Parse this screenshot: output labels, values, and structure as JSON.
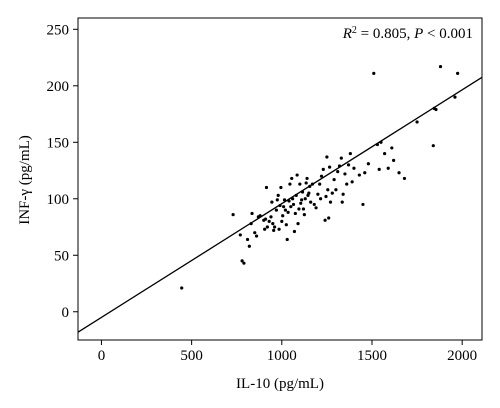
{
  "chart_data": {
    "type": "scatter",
    "xlabel": "IL-10 (pg/mL)",
    "ylabel": "INF-γ (pg/mL)",
    "xlim": [
      -130,
      2110
    ],
    "ylim": [
      -25,
      260
    ],
    "xticks": [
      0,
      500,
      1000,
      1500,
      2000
    ],
    "yticks": [
      0,
      50,
      100,
      150,
      200,
      250
    ],
    "annotation": {
      "r_label": "R",
      "r_exp": "2",
      "r_rest": " = 0.805, ",
      "p_label": "P",
      "p_rest": " < 0.001"
    },
    "fit_line": {
      "slope": 0.1007,
      "intercept": -5
    },
    "points": [
      [
        445,
        21
      ],
      [
        730,
        86
      ],
      [
        770,
        68
      ],
      [
        780,
        45
      ],
      [
        790,
        43
      ],
      [
        810,
        64
      ],
      [
        820,
        58
      ],
      [
        830,
        78
      ],
      [
        835,
        87
      ],
      [
        850,
        70
      ],
      [
        860,
        67
      ],
      [
        870,
        84
      ],
      [
        880,
        85
      ],
      [
        900,
        81
      ],
      [
        905,
        73
      ],
      [
        910,
        82
      ],
      [
        915,
        110
      ],
      [
        920,
        75
      ],
      [
        930,
        80
      ],
      [
        940,
        84
      ],
      [
        945,
        97
      ],
      [
        950,
        78
      ],
      [
        955,
        72
      ],
      [
        960,
        75
      ],
      [
        970,
        90
      ],
      [
        975,
        99
      ],
      [
        980,
        103
      ],
      [
        985,
        73
      ],
      [
        990,
        94
      ],
      [
        995,
        110
      ],
      [
        1000,
        80
      ],
      [
        1005,
        85
      ],
      [
        1010,
        93
      ],
      [
        1015,
        99
      ],
      [
        1020,
        90
      ],
      [
        1025,
        77
      ],
      [
        1030,
        64
      ],
      [
        1035,
        88
      ],
      [
        1040,
        98
      ],
      [
        1045,
        113
      ],
      [
        1050,
        93
      ],
      [
        1055,
        118
      ],
      [
        1060,
        100
      ],
      [
        1065,
        95
      ],
      [
        1070,
        71
      ],
      [
        1075,
        87
      ],
      [
        1080,
        103
      ],
      [
        1085,
        121
      ],
      [
        1090,
        78
      ],
      [
        1095,
        91
      ],
      [
        1100,
        113
      ],
      [
        1105,
        96
      ],
      [
        1110,
        99
      ],
      [
        1115,
        106
      ],
      [
        1120,
        91
      ],
      [
        1125,
        86
      ],
      [
        1130,
        100
      ],
      [
        1135,
        114
      ],
      [
        1140,
        118
      ],
      [
        1145,
        103
      ],
      [
        1150,
        105
      ],
      [
        1155,
        111
      ],
      [
        1160,
        97
      ],
      [
        1170,
        113
      ],
      [
        1180,
        95
      ],
      [
        1190,
        92
      ],
      [
        1200,
        104
      ],
      [
        1210,
        113
      ],
      [
        1215,
        100
      ],
      [
        1220,
        120
      ],
      [
        1230,
        126
      ],
      [
        1240,
        81
      ],
      [
        1245,
        102
      ],
      [
        1250,
        137
      ],
      [
        1255,
        108
      ],
      [
        1260,
        83
      ],
      [
        1265,
        128
      ],
      [
        1270,
        97
      ],
      [
        1280,
        105
      ],
      [
        1290,
        117
      ],
      [
        1300,
        108
      ],
      [
        1310,
        124
      ],
      [
        1320,
        129
      ],
      [
        1330,
        136
      ],
      [
        1335,
        97
      ],
      [
        1340,
        104
      ],
      [
        1350,
        122
      ],
      [
        1360,
        113
      ],
      [
        1370,
        130
      ],
      [
        1380,
        140
      ],
      [
        1390,
        115
      ],
      [
        1400,
        127
      ],
      [
        1430,
        121
      ],
      [
        1450,
        95
      ],
      [
        1460,
        123
      ],
      [
        1480,
        131
      ],
      [
        1510,
        211
      ],
      [
        1530,
        148
      ],
      [
        1540,
        126
      ],
      [
        1550,
        150
      ],
      [
        1570,
        140
      ],
      [
        1590,
        127
      ],
      [
        1610,
        145
      ],
      [
        1620,
        134
      ],
      [
        1650,
        123
      ],
      [
        1680,
        118
      ],
      [
        1750,
        168
      ],
      [
        1840,
        147
      ],
      [
        1845,
        180
      ],
      [
        1855,
        179
      ],
      [
        1880,
        217
      ],
      [
        1960,
        190
      ],
      [
        1975,
        211
      ]
    ]
  }
}
